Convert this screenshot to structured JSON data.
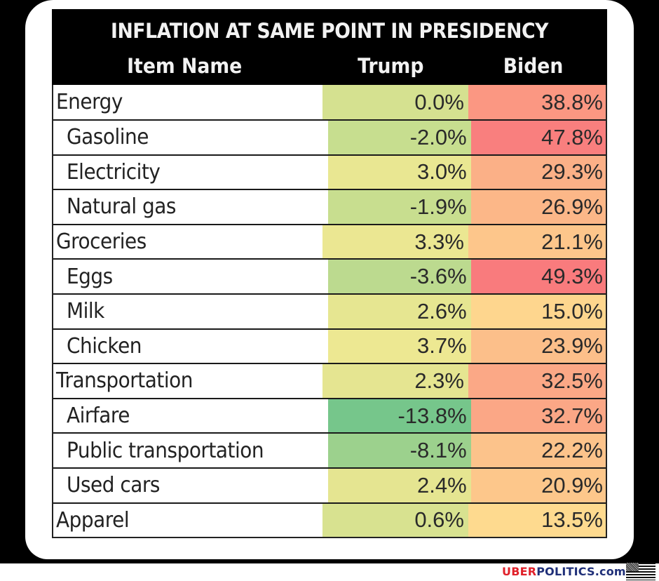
{
  "chart_data": {
    "type": "table",
    "title": "INFLATION AT SAME POINT IN PRESIDENCY",
    "columns": [
      "Item Name",
      "Trump",
      "Biden"
    ],
    "rows": [
      {
        "item": "Energy",
        "level": "category",
        "trump": "0.0%",
        "biden": "38.8%",
        "trump_value": 0.0,
        "biden_value": 38.8
      },
      {
        "item": "Gasoline",
        "level": "subitem",
        "trump": "-2.0%",
        "biden": "47.8%",
        "trump_value": -2.0,
        "biden_value": 47.8
      },
      {
        "item": "Electricity",
        "level": "subitem",
        "trump": "3.0%",
        "biden": "29.3%",
        "trump_value": 3.0,
        "biden_value": 29.3
      },
      {
        "item": "Natural gas",
        "level": "subitem",
        "trump": "-1.9%",
        "biden": "26.9%",
        "trump_value": -1.9,
        "biden_value": 26.9
      },
      {
        "item": "Groceries",
        "level": "category",
        "trump": "3.3%",
        "biden": "21.1%",
        "trump_value": 3.3,
        "biden_value": 21.1
      },
      {
        "item": "Eggs",
        "level": "subitem",
        "trump": "-3.6%",
        "biden": "49.3%",
        "trump_value": -3.6,
        "biden_value": 49.3
      },
      {
        "item": "Milk",
        "level": "subitem",
        "trump": "2.6%",
        "biden": "15.0%",
        "trump_value": 2.6,
        "biden_value": 15.0
      },
      {
        "item": "Chicken",
        "level": "subitem",
        "trump": "3.7%",
        "biden": "23.9%",
        "trump_value": 3.7,
        "biden_value": 23.9
      },
      {
        "item": "Transportation",
        "level": "category",
        "trump": "2.3%",
        "biden": "32.5%",
        "trump_value": 2.3,
        "biden_value": 32.5
      },
      {
        "item": "Airfare",
        "level": "subitem",
        "trump": "-13.8%",
        "biden": "32.7%",
        "trump_value": -13.8,
        "biden_value": 32.7
      },
      {
        "item": "Public transportation",
        "level": "subitem",
        "trump": "-8.1%",
        "biden": "22.2%",
        "trump_value": -8.1,
        "biden_value": 22.2
      },
      {
        "item": "Used cars",
        "level": "subitem",
        "trump": "2.4%",
        "biden": "20.9%",
        "trump_value": 2.4,
        "biden_value": 20.9
      },
      {
        "item": "Apparel",
        "level": "category",
        "trump": "0.6%",
        "biden": "13.5%",
        "trump_value": 0.6,
        "biden_value": 13.5
      }
    ],
    "color_scale": {
      "low": "#63be7b",
      "mid": "#ffeb84",
      "high": "#f8696b"
    }
  },
  "watermark": {
    "part1": "UBER",
    "part2": "POLITICS.com",
    "colors": {
      "part1": "#e0202a",
      "part2": "#1f2f78"
    }
  }
}
